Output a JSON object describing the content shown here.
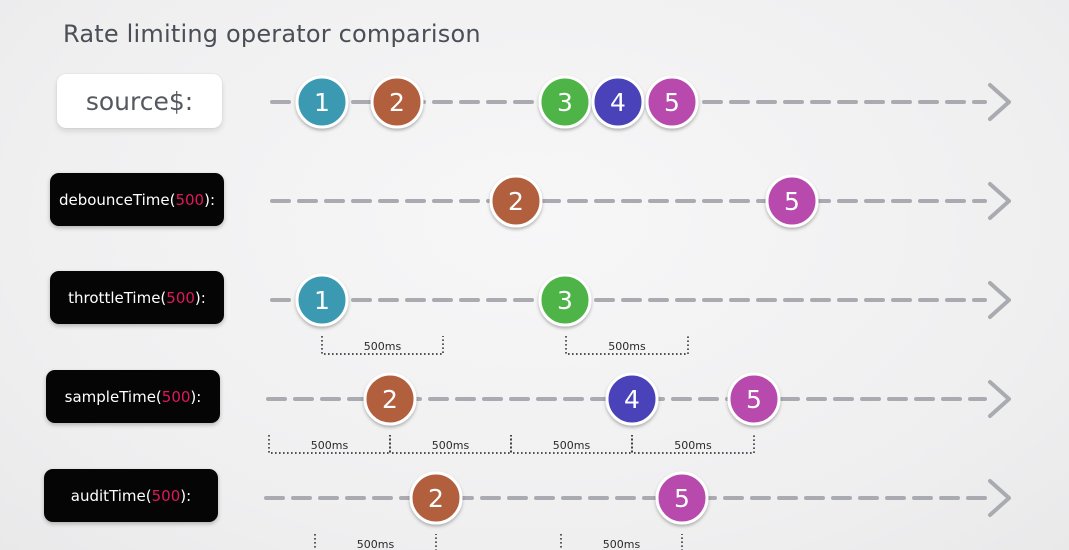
{
  "title": "Rate limiting operator comparison",
  "colors": {
    "line": "#a9abb1",
    "window": "#1e1e1e",
    "marble_1": "#3a9ab2",
    "marble_2": "#b25f3d",
    "marble_3": "#4fb446",
    "marble_4": "#4a43b8",
    "marble_5": "#b848ad",
    "highlight": "#e0185b"
  },
  "rows": [
    {
      "id": "source",
      "label": "source$:",
      "marbles": [
        {
          "value": "1",
          "color": "marble_1",
          "t": 322
        },
        {
          "value": "2",
          "color": "marble_2",
          "t": 397
        },
        {
          "value": "3",
          "color": "marble_3",
          "t": 565
        },
        {
          "value": "4",
          "color": "marble_4",
          "t": 618
        },
        {
          "value": "5",
          "color": "marble_5",
          "t": 672
        }
      ],
      "windows": []
    },
    {
      "id": "debounce",
      "label_name": "debounceTime(",
      "label_num": "500",
      "label_close": "):",
      "marbles": [
        {
          "value": "2",
          "color": "marble_2",
          "t": 516
        },
        {
          "value": "5",
          "color": "marble_5",
          "t": 792
        }
      ],
      "windows": []
    },
    {
      "id": "throttle",
      "label_name": "throttleTime(",
      "label_num": "500",
      "label_close": "):",
      "marbles": [
        {
          "value": "1",
          "color": "marble_1",
          "t": 322
        },
        {
          "value": "3",
          "color": "marble_3",
          "t": 565
        }
      ],
      "windows": [
        {
          "label": "500ms",
          "t_start": 322,
          "t_end": 443
        },
        {
          "label": "500ms",
          "t_start": 566,
          "t_end": 688
        }
      ]
    },
    {
      "id": "sample",
      "label_name": "sampleTime(",
      "label_num": "500",
      "label_close": "):",
      "marbles": [
        {
          "value": "2",
          "color": "marble_2",
          "t": 390
        },
        {
          "value": "4",
          "color": "marble_4",
          "t": 632
        },
        {
          "value": "5",
          "color": "marble_5",
          "t": 754
        }
      ],
      "windows": [
        {
          "label": "500ms",
          "t_start": 269,
          "t_end": 390
        },
        {
          "label": "500ms",
          "t_start": 390,
          "t_end": 511
        },
        {
          "label": "500ms",
          "t_start": 511,
          "t_end": 632
        },
        {
          "label": "500ms",
          "t_start": 632,
          "t_end": 754
        }
      ]
    },
    {
      "id": "audit",
      "label_name": "auditTime(",
      "label_num": "500",
      "label_close": "):",
      "marbles": [
        {
          "value": "2",
          "color": "marble_2",
          "t": 436
        },
        {
          "value": "5",
          "color": "marble_5",
          "t": 682
        }
      ],
      "windows": [
        {
          "label": "500ms",
          "t_start": 315,
          "t_end": 436
        },
        {
          "label": "500ms",
          "t_start": 561,
          "t_end": 682
        }
      ]
    }
  ]
}
